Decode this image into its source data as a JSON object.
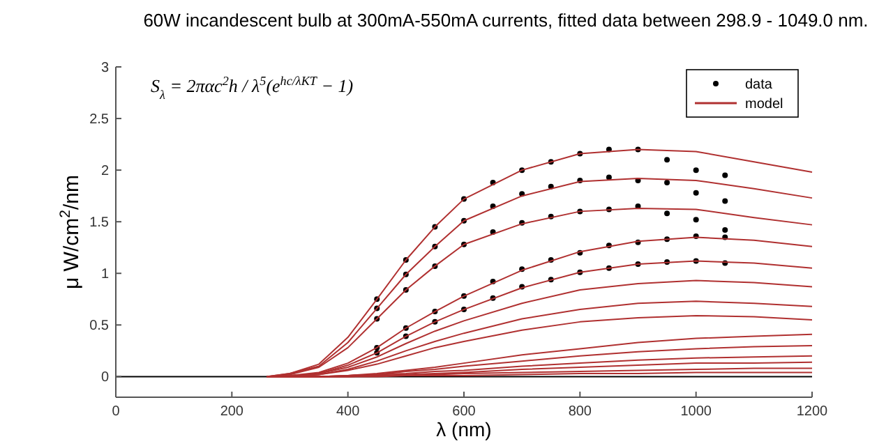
{
  "chart_data": {
    "type": "line",
    "title": "60W incandescent bulb at 300mA-550mA currents, fitted data between 298.9 - 1049.0 nm.",
    "xlabel": "λ (nm)",
    "ylabel": "μ W/cm$^{2}$/nm",
    "annotations": [
      "S$_{λ}$ = 2παc$^{2}$h / λ$^{5}$(e$^{hc/λKT}$ − 1)"
    ],
    "x": [
      260,
      300,
      350,
      400,
      450,
      500,
      550,
      600,
      700,
      800,
      900,
      1000,
      1100,
      1200
    ],
    "xlim": [
      0,
      1200
    ],
    "xticks": [
      0,
      200,
      400,
      600,
      800,
      1000,
      1200
    ],
    "ylim": [
      -0.2,
      3
    ],
    "yticks": [
      0,
      0.5,
      1,
      1.5,
      2,
      2.5,
      3
    ],
    "grid": false,
    "legend": "top right",
    "line_style": "solid",
    "ref_lines": [
      {
        "axis": "y",
        "value": 0,
        "color": "#000000"
      }
    ],
    "series": [
      {
        "type": "scatter",
        "name": "data",
        "color": "#000000",
        "marker": "circle",
        "x": [
          450,
          500,
          550,
          600,
          650,
          700,
          750,
          800,
          850,
          900,
          950,
          1000,
          1050,
          450,
          500,
          550,
          600,
          650,
          700,
          750,
          800,
          850,
          900,
          950,
          1000,
          1050,
          450,
          500,
          550,
          600,
          650,
          700,
          750,
          800,
          850,
          900,
          950,
          1000,
          1050,
          450,
          500,
          550,
          600,
          650,
          700,
          750,
          800,
          850,
          900,
          950,
          1000,
          1050,
          450,
          500,
          550,
          600,
          650,
          700,
          750,
          800,
          850,
          900,
          950,
          1000,
          1050
        ],
        "values": [
          0.75,
          1.13,
          1.45,
          1.72,
          1.88,
          2.0,
          2.08,
          2.16,
          2.2,
          2.2,
          2.1,
          2.0,
          1.95,
          0.66,
          0.99,
          1.26,
          1.51,
          1.65,
          1.77,
          1.84,
          1.9,
          1.93,
          1.9,
          1.88,
          1.78,
          1.7,
          0.56,
          0.84,
          1.07,
          1.28,
          1.4,
          1.49,
          1.55,
          1.6,
          1.62,
          1.65,
          1.58,
          1.52,
          1.42,
          0.28,
          0.47,
          0.63,
          0.78,
          0.92,
          1.04,
          1.13,
          1.2,
          1.27,
          1.3,
          1.33,
          1.36,
          1.35,
          0.23,
          0.39,
          0.53,
          0.65,
          0.76,
          0.87,
          0.94,
          1.01,
          1.05,
          1.09,
          1.11,
          1.12,
          1.1
        ]
      },
      {
        "name": "model",
        "color": "#b03030",
        "values": [
          0,
          0.03,
          0.12,
          0.38,
          0.75,
          1.13,
          1.45,
          1.72,
          2.0,
          2.16,
          2.2,
          2.18,
          2.08,
          1.98
        ]
      },
      {
        "color": "#b03030",
        "values": [
          0,
          0.03,
          0.1,
          0.33,
          0.66,
          0.99,
          1.26,
          1.51,
          1.75,
          1.89,
          1.92,
          1.9,
          1.82,
          1.73
        ]
      },
      {
        "color": "#b03030",
        "values": [
          0,
          0.02,
          0.09,
          0.28,
          0.56,
          0.84,
          1.07,
          1.28,
          1.48,
          1.6,
          1.63,
          1.62,
          1.54,
          1.47
        ]
      },
      {
        "color": "#b03030",
        "values": [
          0,
          0.01,
          0.04,
          0.13,
          0.28,
          0.47,
          0.63,
          0.78,
          1.03,
          1.21,
          1.31,
          1.35,
          1.32,
          1.26
        ]
      },
      {
        "color": "#b03030",
        "values": [
          0,
          0.01,
          0.03,
          0.11,
          0.23,
          0.39,
          0.53,
          0.65,
          0.86,
          1.01,
          1.09,
          1.12,
          1.1,
          1.05
        ]
      },
      {
        "color": "#b03030",
        "values": [
          0,
          0,
          0.03,
          0.09,
          0.19,
          0.32,
          0.44,
          0.54,
          0.71,
          0.84,
          0.9,
          0.93,
          0.91,
          0.87
        ]
      },
      {
        "color": "#b03030",
        "values": [
          0,
          0,
          0.02,
          0.07,
          0.15,
          0.25,
          0.34,
          0.42,
          0.56,
          0.65,
          0.71,
          0.73,
          0.71,
          0.68
        ]
      },
      {
        "color": "#b03030",
        "values": [
          0,
          0,
          0.02,
          0.06,
          0.12,
          0.2,
          0.28,
          0.34,
          0.45,
          0.53,
          0.57,
          0.59,
          0.58,
          0.55
        ]
      },
      {
        "color": "#b03030",
        "values": [
          0,
          0,
          0,
          0.01,
          0.03,
          0.06,
          0.09,
          0.13,
          0.21,
          0.27,
          0.33,
          0.37,
          0.39,
          0.41
        ]
      },
      {
        "color": "#b03030",
        "values": [
          0,
          0,
          0,
          0.01,
          0.02,
          0.05,
          0.07,
          0.1,
          0.15,
          0.2,
          0.24,
          0.27,
          0.29,
          0.3
        ]
      },
      {
        "color": "#b03030",
        "values": [
          0,
          0,
          0,
          0.01,
          0.02,
          0.03,
          0.05,
          0.06,
          0.1,
          0.13,
          0.16,
          0.18,
          0.19,
          0.2
        ]
      },
      {
        "color": "#b03030",
        "values": [
          0,
          0,
          0,
          0,
          0.01,
          0.02,
          0.03,
          0.04,
          0.07,
          0.09,
          0.11,
          0.13,
          0.13,
          0.14
        ]
      },
      {
        "color": "#b03030",
        "values": [
          0,
          0,
          0,
          0,
          0.01,
          0.01,
          0.02,
          0.03,
          0.04,
          0.05,
          0.06,
          0.07,
          0.08,
          0.08
        ]
      },
      {
        "color": "#b03030",
        "values": [
          0,
          0,
          0,
          0,
          0,
          0.01,
          0.01,
          0.01,
          0.02,
          0.03,
          0.03,
          0.04,
          0.04,
          0.04
        ]
      }
    ]
  }
}
